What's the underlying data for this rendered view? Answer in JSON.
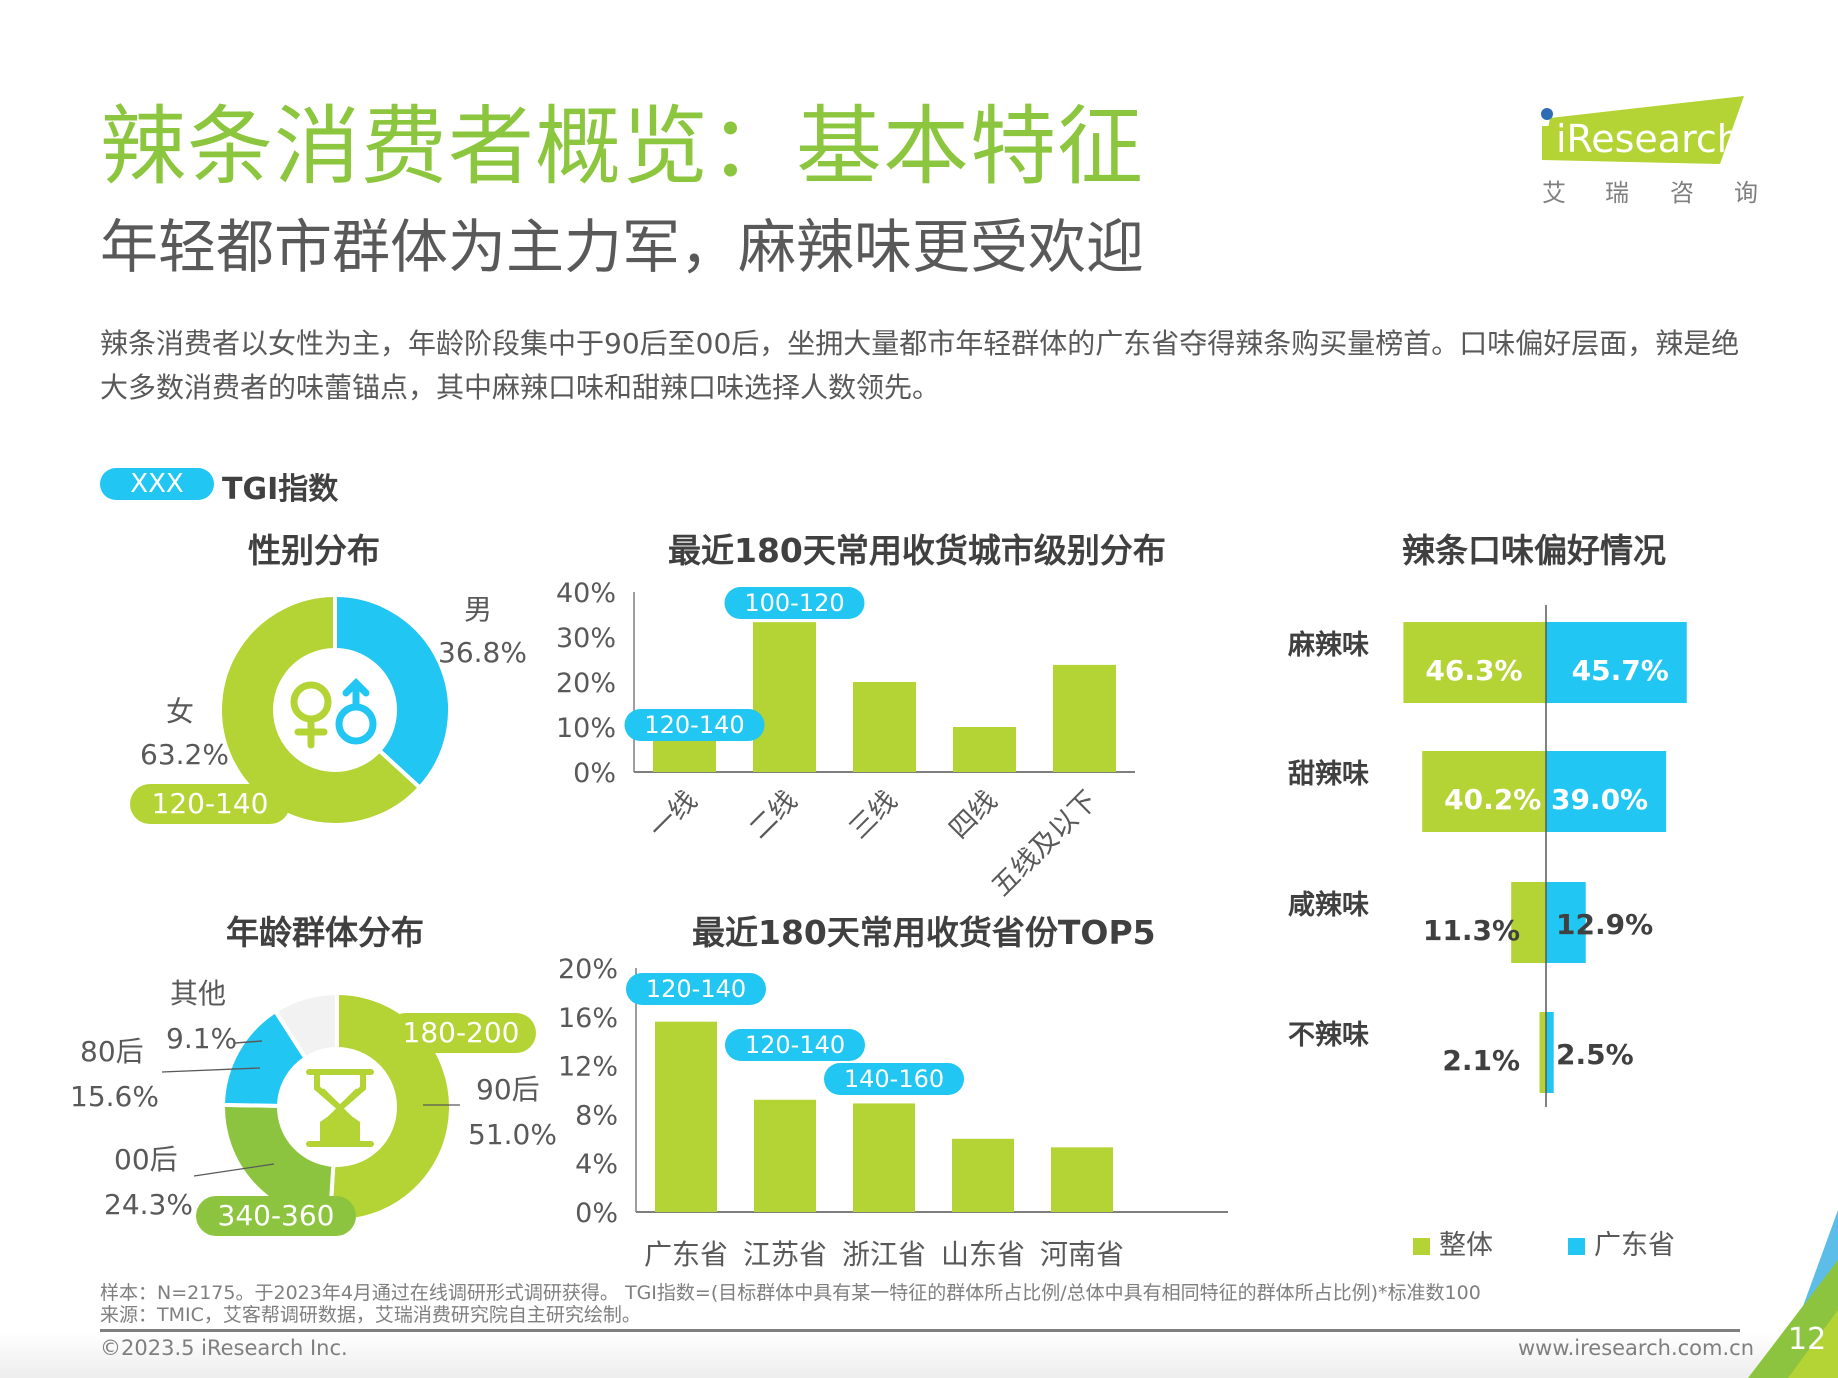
{
  "header": {
    "title": "辣条消费者概览：基本特征",
    "subtitle": "年轻都市群体为主力军，麻辣味更受欢迎",
    "summary": "辣条消费者以女性为主，年龄阶段集中于90后至00后，坐拥大量都市年轻群体的广东省夺得辣条购买量榜首。口味偏好层面，辣是绝大多数消费者的味蕾锚点，其中麻辣口味和甜辣口味选择人数领先。"
  },
  "logo": {
    "brand": "iResearch",
    "cn_chars": [
      "艾",
      "瑞",
      "咨",
      "询"
    ]
  },
  "tgi_legend": {
    "pill": "XXX",
    "label": "TGI指数"
  },
  "colors": {
    "green": "#b4d334",
    "dark_green": "#8cc43f",
    "blue": "#21c6f3",
    "gray": "#f2f2f2",
    "title_green": "#8cc63f"
  },
  "chart_data": [
    {
      "id": "gender",
      "type": "pie",
      "title": "性别分布",
      "slices": [
        {
          "label": "男",
          "value": 36.8,
          "display": "36.8%",
          "color": "#21c6f3"
        },
        {
          "label": "女",
          "value": 63.2,
          "display": "63.2%",
          "color": "#b4d334",
          "tgi": "120-140"
        }
      ]
    },
    {
      "id": "city_tier",
      "type": "bar",
      "title": "最近180天常用收货城市级别分布",
      "categories": [
        "一线",
        "二线",
        "三线",
        "四线",
        "五线及以下"
      ],
      "values": [
        7.8,
        33.3,
        20.0,
        10.0,
        23.8
      ],
      "tgi": [
        "120-140",
        "100-120",
        null,
        null,
        null
      ],
      "yticks": [
        "0%",
        "10%",
        "20%",
        "30%",
        "40%"
      ],
      "ylim": [
        0,
        40
      ],
      "xlabel": "",
      "ylabel": ""
    },
    {
      "id": "age",
      "type": "pie",
      "title": "年龄群体分布",
      "slices": [
        {
          "label": "90后",
          "value": 51.0,
          "display": "51.0%",
          "color": "#b4d334",
          "tgi": "180-200"
        },
        {
          "label": "00后",
          "value": 24.3,
          "display": "24.3%",
          "color": "#8cc43f",
          "tgi": "340-360"
        },
        {
          "label": "80后",
          "value": 15.6,
          "display": "15.6%",
          "color": "#21c6f3"
        },
        {
          "label": "其他",
          "value": 9.1,
          "display": "9.1%",
          "color": "#f2f2f2"
        }
      ]
    },
    {
      "id": "province_top5",
      "type": "bar",
      "title": "最近180天常用收货省份TOP5",
      "categories": [
        "广东省",
        "江苏省",
        "浙江省",
        "山东省",
        "河南省"
      ],
      "values": [
        15.6,
        9.2,
        8.9,
        6.0,
        5.3
      ],
      "tgi": [
        "120-140",
        "120-140",
        "140-160",
        null,
        null
      ],
      "yticks": [
        "0%",
        "4%",
        "8%",
        "12%",
        "16%",
        "20%"
      ],
      "ylim": [
        0,
        20
      ],
      "xlabel": "",
      "ylabel": ""
    },
    {
      "id": "flavor",
      "type": "bar",
      "orientation": "horizontal-diverging",
      "title": "辣条口味偏好情况",
      "categories": [
        "麻辣味",
        "甜辣味",
        "咸辣味",
        "不辣味"
      ],
      "series": [
        {
          "name": "整体",
          "values": [
            46.3,
            40.2,
            11.3,
            2.1
          ],
          "display": [
            "46.3%",
            "40.2%",
            "11.3%",
            "2.1%"
          ],
          "color": "#b4d334"
        },
        {
          "name": "广东省",
          "values": [
            45.7,
            39.0,
            12.9,
            2.5
          ],
          "display": [
            "45.7%",
            "39.0%",
            "12.9%",
            "2.5%"
          ],
          "color": "#21c6f3"
        }
      ],
      "legend": "bottom"
    }
  ],
  "footer": {
    "note_line1": "样本：N=2175。于2023年4月通过在线调研形式调研获得。 TGI指数=(目标群体中具有某一特征的群体所占比例/总体中具有相同特征的群体所占比例)*标准数100",
    "note_line2": "来源：TMIC，艾客帮调研数据，艾瑞消费研究院自主研究绘制。",
    "copyright": "©2023.5 iResearch Inc.",
    "website": "www.iresearch.com.cn",
    "page_number": "12"
  }
}
